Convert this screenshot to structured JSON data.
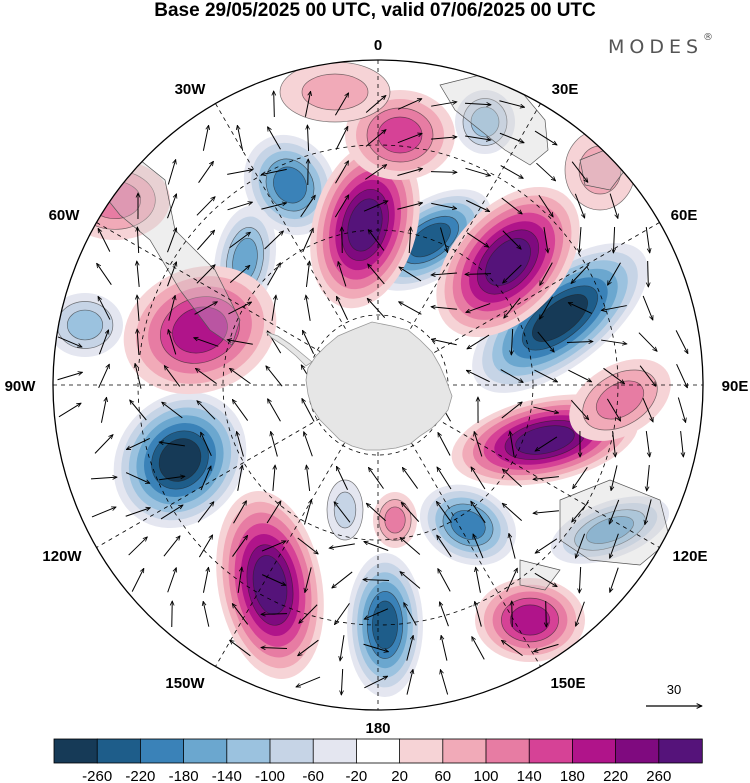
{
  "title": "Base 29/05/2025 00 UTC, valid 07/06/2025 00 UTC",
  "brand": {
    "name": "MODES",
    "mark": "®"
  },
  "map": {
    "projection": "south-polar-stereographic",
    "longitude_labels": [
      "0",
      "30E",
      "60E",
      "90E",
      "120E",
      "150E",
      "180",
      "150W",
      "120W",
      "90W",
      "60W",
      "30W"
    ],
    "antarctica_color": "#e6e6e6",
    "graticule": "dashed"
  },
  "wind_reference": {
    "label": "30",
    "icon": "reference-arrow-icon"
  },
  "colorbar": {
    "labels": [
      "-260",
      "-220",
      "-180",
      "-140",
      "-100",
      "-60",
      "-20",
      "20",
      "60",
      "100",
      "140",
      "180",
      "220",
      "260"
    ],
    "colors": [
      "#163a57",
      "#1e5d8a",
      "#3a82b8",
      "#6ba7cf",
      "#9bc2df",
      "#c6d4e6",
      "#e4e6f0",
      "#ffffff",
      "#f6d3d6",
      "#f1aab8",
      "#e77ca3",
      "#d64296",
      "#b0148a",
      "#7f0a7f",
      "#55137a"
    ]
  }
}
